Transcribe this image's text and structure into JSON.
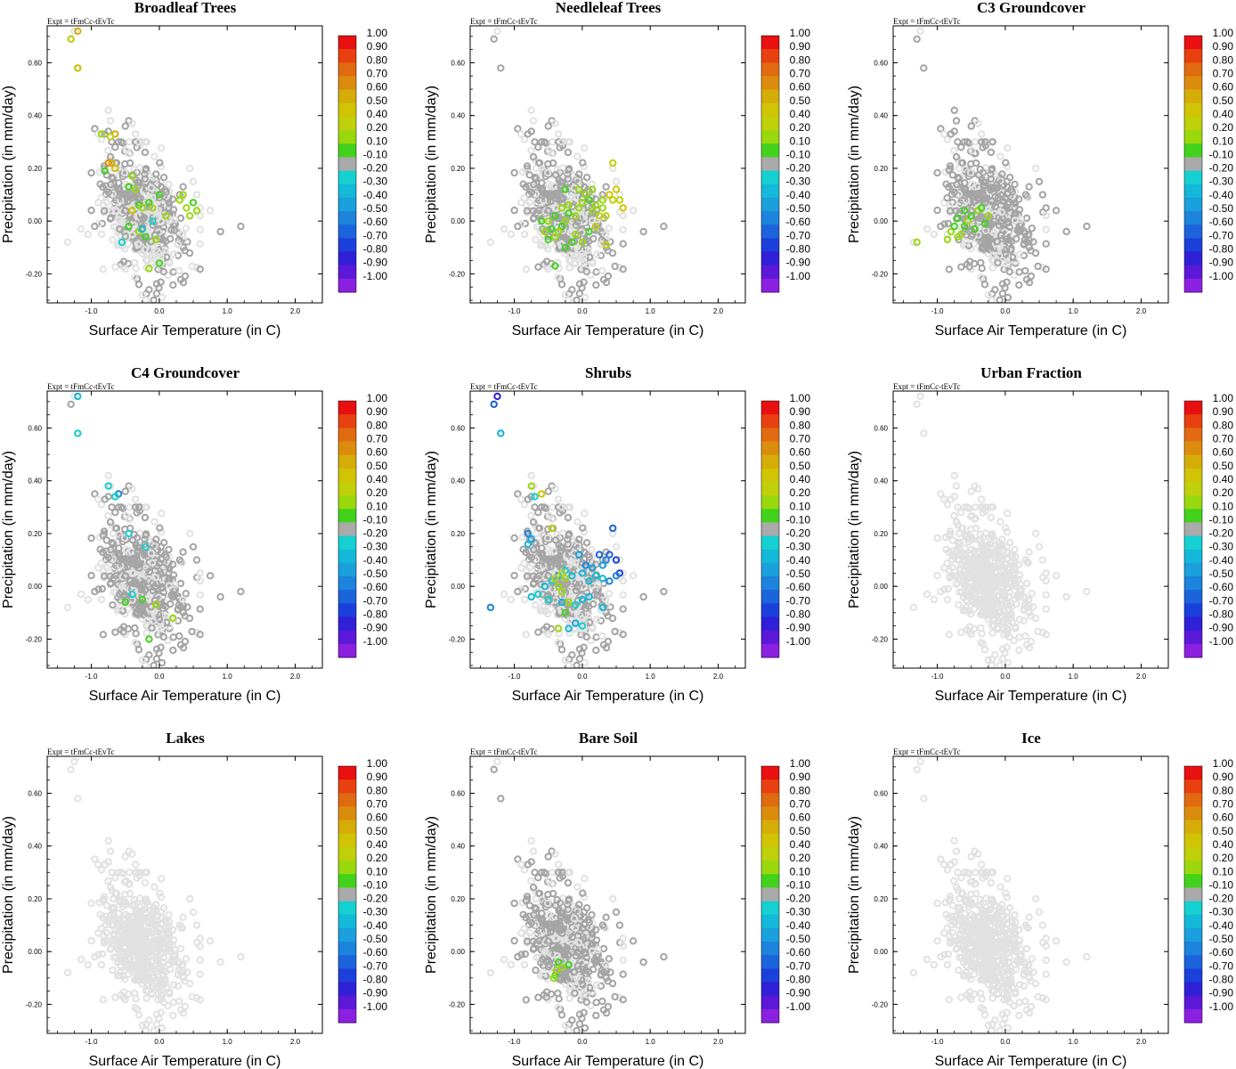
{
  "chart_data": {
    "type": "scatter",
    "expt_label": "Expt = tFmCc-tEvTc",
    "xlabel": "Surface Air Temperature (in C)",
    "ylabel": "Precipitation (in mm/day)",
    "xlim": [
      -1.65,
      2.4
    ],
    "ylim": [
      -0.31,
      0.74
    ],
    "xticks": [
      -1.0,
      0.0,
      1.0,
      2.0
    ],
    "xtick_labels": [
      "-1.0",
      "0.0",
      "1.0",
      "2.0"
    ],
    "yticks": [
      -0.2,
      0.0,
      0.2,
      0.4,
      0.6
    ],
    "ytick_labels": [
      "-0.20",
      "0.00",
      "0.20",
      "0.40",
      "0.60"
    ],
    "colorbar": {
      "labels": [
        "1.00",
        "0.90",
        "0.80",
        "0.70",
        "0.60",
        "0.50",
        "0.40",
        "0.20",
        "0.10",
        "-0.10",
        "-0.20",
        "-0.30",
        "-0.40",
        "-0.50",
        "-0.60",
        "-0.70",
        "-0.80",
        "-0.90",
        "-1.00"
      ],
      "colors": [
        "#e81010",
        "#e84010",
        "#e06a10",
        "#dc8c0c",
        "#d6ac08",
        "#d0c404",
        "#c0d00a",
        "#9ad80e",
        "#42d21c",
        "#aaaaaa",
        "#14d0d0",
        "#14b8d8",
        "#1aa0dc",
        "#1c84dc",
        "#1c64dc",
        "#1c40dc",
        "#3020d8",
        "#5c18d8",
        "#8c20e0"
      ]
    },
    "colors": {
      "background_points": "#e1e1e1",
      "active_points": "#a4a4a4"
    },
    "base_points": [
      [
        -1.25,
        0.72
      ],
      [
        -1.2,
        0.58
      ],
      [
        -1.3,
        0.69
      ],
      [
        -0.95,
        0.35
      ],
      [
        -0.9,
        0.33
      ],
      [
        -0.85,
        0.31
      ],
      [
        -0.8,
        0.33
      ],
      [
        -0.75,
        0.34
      ],
      [
        -0.7,
        0.3
      ],
      [
        -0.65,
        0.28
      ],
      [
        -0.75,
        0.42
      ],
      [
        -0.72,
        0.38
      ],
      [
        -0.5,
        0.36
      ],
      [
        -0.45,
        0.38
      ],
      [
        -0.4,
        0.37
      ],
      [
        -0.35,
        0.33
      ],
      [
        -0.3,
        0.3
      ],
      [
        -0.6,
        0.3
      ],
      [
        -1.35,
        -0.08
      ],
      [
        -1.15,
        -0.03
      ],
      [
        -1.05,
        -0.05
      ],
      [
        -0.95,
        -0.02
      ],
      [
        -0.85,
        -0.05
      ],
      [
        0.9,
        -0.04
      ],
      [
        1.2,
        -0.02
      ],
      [
        0.75,
        0.04
      ],
      [
        -0.25,
        -0.28
      ],
      [
        -0.2,
        -0.3
      ],
      [
        -0.15,
        -0.26
      ],
      [
        -0.3,
        -0.24
      ],
      [
        0.5,
        0.15
      ],
      [
        0.55,
        0.1
      ],
      [
        0.6,
        0.05
      ],
      [
        0.45,
        0.2
      ],
      [
        0.35,
        0.13
      ],
      [
        0.3,
        0.1
      ]
    ],
    "cloud": {
      "center": [
        -0.22,
        0.02
      ],
      "spread": [
        0.3,
        0.1
      ],
      "count": 560,
      "seed": 7
    },
    "panels": [
      {
        "title": "Broadleaf Trees",
        "gray_fraction": 0.5,
        "colored": [
          [
            -1.2,
            0.72,
            0.6
          ],
          [
            -1.2,
            0.58,
            0.45
          ],
          [
            -1.3,
            0.69,
            0.4
          ],
          [
            -0.65,
            0.33,
            0.55
          ],
          [
            -0.72,
            0.32,
            0.4
          ],
          [
            -0.85,
            0.33,
            0.2
          ],
          [
            -0.75,
            0.22,
            0.7
          ],
          [
            -0.8,
            0.19,
            0.1
          ],
          [
            -0.65,
            0.2,
            0.45
          ],
          [
            -0.7,
            0.22,
            0.6
          ],
          [
            -0.4,
            0.17,
            0.15
          ],
          [
            -0.35,
            0.12,
            0.2
          ],
          [
            -0.45,
            0.13,
            0.1
          ],
          [
            -0.3,
            0.06,
            0.1
          ],
          [
            -0.4,
            0.04,
            0.5
          ],
          [
            -0.25,
            0.05,
            0.15
          ],
          [
            -0.15,
            0.07,
            0.1
          ],
          [
            -0.1,
            0.05,
            0.15
          ],
          [
            0.0,
            0.1,
            0.1
          ],
          [
            0.1,
            0.02,
            0.15
          ],
          [
            0.3,
            0.08,
            0.2
          ],
          [
            0.35,
            0.1,
            0.15
          ],
          [
            0.4,
            0.05,
            0.2
          ],
          [
            0.5,
            0.07,
            0.1
          ],
          [
            0.55,
            0.04,
            0.15
          ],
          [
            0.45,
            0.02,
            0.2
          ],
          [
            -0.45,
            -0.02,
            0.1
          ],
          [
            -0.3,
            -0.04,
            0.15
          ],
          [
            -0.2,
            -0.06,
            0.1
          ],
          [
            -0.1,
            0.0,
            -0.2
          ],
          [
            -0.25,
            -0.03,
            -0.25
          ],
          [
            -0.55,
            -0.08,
            -0.2
          ],
          [
            0.0,
            -0.16,
            0.1
          ],
          [
            -0.15,
            -0.18,
            0.15
          ],
          [
            -0.05,
            -0.07,
            0.2
          ]
        ]
      },
      {
        "title": "Needleleaf Trees",
        "gray_fraction": 0.55,
        "colored": [
          [
            0.45,
            0.22,
            0.4
          ],
          [
            0.5,
            0.12,
            0.5
          ],
          [
            0.55,
            0.08,
            0.4
          ],
          [
            0.45,
            0.08,
            0.3
          ],
          [
            0.4,
            0.1,
            0.45
          ],
          [
            0.3,
            0.08,
            0.2
          ],
          [
            0.3,
            0.05,
            0.15
          ],
          [
            0.2,
            0.06,
            0.2
          ],
          [
            0.25,
            0.02,
            0.3
          ],
          [
            0.35,
            0.02,
            0.4
          ],
          [
            0.15,
            0.04,
            0.15
          ],
          [
            0.1,
            0.08,
            0.1
          ],
          [
            0.05,
            0.1,
            0.2
          ],
          [
            0.0,
            0.07,
            0.15
          ],
          [
            -0.05,
            0.05,
            0.2
          ],
          [
            -0.1,
            0.02,
            0.15
          ],
          [
            -0.2,
            0.03,
            0.1
          ],
          [
            -0.25,
            0.0,
            0.15
          ],
          [
            -0.3,
            -0.02,
            0.1
          ],
          [
            -0.35,
            -0.04,
            0.15
          ],
          [
            -0.4,
            -0.06,
            0.2
          ],
          [
            -0.45,
            -0.03,
            0.1
          ],
          [
            -0.5,
            -0.07,
            0.1
          ],
          [
            -0.55,
            -0.04,
            0.15
          ],
          [
            -0.6,
            0.0,
            0.1
          ],
          [
            -0.5,
            0.0,
            0.2
          ],
          [
            -0.4,
            0.02,
            0.1
          ],
          [
            -0.3,
            0.05,
            0.2
          ],
          [
            -0.2,
            0.06,
            0.15
          ],
          [
            -0.1,
            -0.05,
            0.2
          ],
          [
            0.0,
            -0.08,
            0.15
          ],
          [
            0.1,
            -0.04,
            0.1
          ],
          [
            0.2,
            -0.02,
            0.3
          ],
          [
            -0.25,
            -0.1,
            0.1
          ],
          [
            -0.15,
            -0.08,
            0.1
          ],
          [
            -0.05,
            0.12,
            0.15
          ],
          [
            -0.25,
            0.12,
            0.1
          ],
          [
            0.15,
            0.12,
            0.2
          ],
          [
            -0.4,
            -0.17,
            0.1
          ],
          [
            0.35,
            -0.09,
            0.3
          ],
          [
            0.6,
            0.05,
            0.45
          ]
        ]
      },
      {
        "title": "C3 Groundcover",
        "gray_fraction": 0.7,
        "colored": [
          [
            -1.3,
            -0.08,
            0.15
          ],
          [
            -0.85,
            -0.07,
            0.2
          ],
          [
            -0.8,
            -0.04,
            0.15
          ],
          [
            -0.75,
            -0.02,
            0.1
          ],
          [
            -0.7,
            -0.06,
            0.15
          ],
          [
            -0.65,
            -0.05,
            0.2
          ],
          [
            -0.6,
            -0.02,
            0.1
          ],
          [
            -0.55,
            0.0,
            0.15
          ],
          [
            -0.5,
            0.02,
            0.1
          ],
          [
            -0.45,
            -0.03,
            0.1
          ],
          [
            -0.4,
            0.04,
            0.15
          ],
          [
            -0.35,
            0.05,
            0.1
          ],
          [
            -0.3,
            -0.01,
            0.1
          ],
          [
            -0.25,
            0.02,
            0.15
          ],
          [
            -0.7,
            0.01,
            0.1
          ],
          [
            -0.6,
            0.04,
            0.1
          ]
        ]
      },
      {
        "title": "C4 Groundcover",
        "gray_fraction": 0.65,
        "colored": [
          [
            -1.2,
            0.72,
            -0.3
          ],
          [
            -1.2,
            0.58,
            -0.2
          ],
          [
            -0.75,
            0.38,
            -0.2
          ],
          [
            -0.6,
            0.35,
            -0.5
          ],
          [
            -0.65,
            0.34,
            -0.2
          ],
          [
            -0.2,
            0.15,
            -0.2
          ],
          [
            -0.45,
            0.2,
            -0.2
          ],
          [
            -0.5,
            -0.06,
            0.1
          ],
          [
            -0.25,
            -0.05,
            0.1
          ],
          [
            0.2,
            -0.12,
            0.15
          ],
          [
            -0.15,
            -0.2,
            0.1
          ],
          [
            -0.4,
            -0.03,
            -0.2
          ],
          [
            -0.05,
            -0.07,
            0.15
          ]
        ]
      },
      {
        "title": "Shrubs",
        "gray_fraction": 0.55,
        "colored": [
          [
            -1.25,
            0.72,
            -0.8
          ],
          [
            -1.3,
            0.69,
            -0.6
          ],
          [
            -1.2,
            0.58,
            -0.3
          ],
          [
            -0.75,
            0.38,
            0.2
          ],
          [
            -0.6,
            0.35,
            0.5
          ],
          [
            -0.7,
            0.34,
            -0.2
          ],
          [
            -0.45,
            0.22,
            0.4
          ],
          [
            -0.8,
            0.2,
            -0.5
          ],
          [
            -0.75,
            0.18,
            -0.4
          ],
          [
            -0.8,
            0.16,
            -0.3
          ],
          [
            0.45,
            0.22,
            -0.6
          ],
          [
            0.4,
            0.12,
            -0.6
          ],
          [
            0.5,
            0.1,
            -0.7
          ],
          [
            0.55,
            0.05,
            -0.7
          ],
          [
            0.5,
            0.04,
            -0.5
          ],
          [
            0.35,
            0.1,
            -0.5
          ],
          [
            0.3,
            0.08,
            -0.4
          ],
          [
            0.25,
            0.12,
            -0.6
          ],
          [
            0.15,
            0.07,
            -0.4
          ],
          [
            0.2,
            0.04,
            -0.3
          ],
          [
            0.3,
            0.03,
            -0.3
          ],
          [
            0.4,
            0.02,
            -0.5
          ],
          [
            0.1,
            0.02,
            -0.3
          ],
          [
            0.05,
            0.08,
            -0.5
          ],
          [
            0.0,
            0.05,
            -0.3
          ],
          [
            -0.05,
            0.12,
            -0.4
          ],
          [
            -0.15,
            0.04,
            -0.3
          ],
          [
            -0.25,
            0.06,
            -0.2
          ],
          [
            -0.35,
            0.04,
            -0.3
          ],
          [
            -0.45,
            0.02,
            -0.2
          ],
          [
            -0.55,
            0.0,
            -0.3
          ],
          [
            -0.65,
            -0.03,
            -0.2
          ],
          [
            -0.75,
            -0.04,
            -0.3
          ],
          [
            -0.5,
            -0.05,
            -0.2
          ],
          [
            -0.3,
            -0.06,
            -0.3
          ],
          [
            -0.1,
            -0.07,
            -0.2
          ],
          [
            0.0,
            -0.05,
            -0.3
          ],
          [
            0.1,
            -0.04,
            -0.3
          ],
          [
            0.3,
            -0.08,
            -0.3
          ],
          [
            -1.35,
            -0.08,
            -0.5
          ],
          [
            -0.2,
            -0.16,
            -0.3
          ],
          [
            -0.1,
            -0.14,
            -0.4
          ],
          [
            -0.4,
            0.03,
            0.3
          ],
          [
            -0.35,
            0.0,
            0.15
          ],
          [
            -0.3,
            -0.02,
            0.2
          ],
          [
            -0.25,
            0.03,
            0.15
          ],
          [
            -0.3,
            0.05,
            0.3
          ],
          [
            -0.25,
            -0.1,
            0.1
          ],
          [
            -0.2,
            -0.06,
            0.2
          ],
          [
            -0.35,
            -0.16,
            0.15
          ],
          [
            0.0,
            -0.15,
            -0.2
          ]
        ]
      },
      {
        "title": "Urban Fraction",
        "gray_fraction": 0.0,
        "colored": []
      },
      {
        "title": "Lakes",
        "gray_fraction": 0.0,
        "colored": []
      },
      {
        "title": "Bare Soil",
        "gray_fraction": 0.65,
        "colored": [
          [
            -0.35,
            -0.04,
            0.1
          ],
          [
            -0.3,
            -0.06,
            0.15
          ],
          [
            -0.4,
            -0.09,
            0.1
          ],
          [
            -0.42,
            -0.1,
            0.15
          ],
          [
            -0.2,
            -0.05,
            0.1
          ],
          [
            -0.38,
            -0.07,
            0.2
          ]
        ]
      },
      {
        "title": "Ice",
        "gray_fraction": 0.0,
        "colored": []
      }
    ]
  }
}
